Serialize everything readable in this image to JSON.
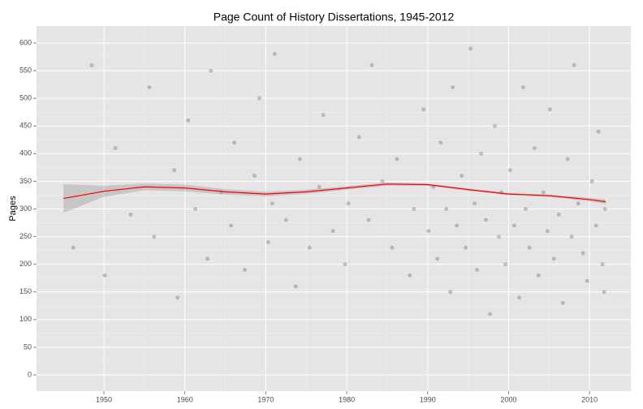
{
  "chart_data": {
    "type": "scatter",
    "title": "Page Count of History Dissertations, 1945-2012",
    "y_label": "Pages",
    "background": "#e5e5e5",
    "grid": true,
    "point_color": "#000000",
    "xlim": [
      1941.67,
      2015.1
    ],
    "ylim": [
      -29.3,
      630.8
    ],
    "xticks": [
      1950,
      1960,
      1970,
      1980,
      1990,
      2000,
      2010
    ],
    "yticks": [
      0,
      50,
      100,
      150,
      200,
      250,
      300,
      350,
      400,
      450,
      500,
      550,
      600
    ],
    "x": [
      1946.2,
      1948.5,
      1950.1,
      1951.4,
      1953.3,
      1955.6,
      1956.2,
      1958.7,
      1959.1,
      1960.4,
      1961.3,
      1962.8,
      1963.2,
      1964.5,
      1965.7,
      1966.1,
      1967.4,
      1968.6,
      1969.2,
      1970.3,
      1970.8,
      1971.1,
      1972.5,
      1973.7,
      1974.2,
      1975.4,
      1976.6,
      1977.1,
      1978.3,
      1979.8,
      1980.2,
      1981.5,
      1982.7,
      1983.1,
      1984.4,
      1985.6,
      1986.2,
      1987.8,
      1988.3,
      1989.5,
      1990.1,
      1990.7,
      1991.2,
      1991.6,
      1992.3,
      1992.8,
      1993.1,
      1993.6,
      1994.2,
      1994.7,
      1995.3,
      1995.8,
      1996.1,
      1996.6,
      1997.2,
      1997.7,
      1998.3,
      1998.8,
      1999.1,
      1999.6,
      2000.2,
      2000.7,
      2001.3,
      2001.8,
      2002.1,
      2002.6,
      2003.2,
      2003.7,
      2004.3,
      2004.8,
      2005.1,
      2005.6,
      2006.2,
      2006.7,
      2007.3,
      2007.8,
      2008.1,
      2008.6,
      2009.2,
      2009.7,
      2010.3,
      2010.8,
      2011.1,
      2011.6,
      2011.9,
      2011.8
    ],
    "values": [
      230,
      560,
      180,
      410,
      290,
      520,
      250,
      370,
      140,
      460,
      300,
      210,
      550,
      330,
      270,
      420,
      190,
      360,
      500,
      240,
      310,
      580,
      280,
      160,
      390,
      230,
      340,
      470,
      260,
      200,
      310,
      430,
      280,
      560,
      350,
      230,
      390,
      180,
      300,
      480,
      260,
      340,
      210,
      420,
      300,
      150,
      520,
      270,
      360,
      230,
      590,
      310,
      190,
      400,
      280,
      110,
      450,
      250,
      330,
      200,
      370,
      270,
      140,
      520,
      300,
      230,
      410,
      180,
      330,
      260,
      480,
      210,
      290,
      130,
      390,
      250,
      560,
      310,
      220,
      170,
      350,
      270,
      440,
      200,
      300,
      150
    ],
    "smooth": {
      "color": "#ff0000",
      "band_color": "#999999",
      "x": [
        1945,
        1950,
        1955,
        1960,
        1965,
        1970,
        1975,
        1980,
        1985,
        1990,
        1995,
        2000,
        2005,
        2010,
        2012
      ],
      "values": [
        319,
        332,
        340,
        338,
        331,
        327,
        331,
        338,
        345,
        344,
        335,
        327,
        324,
        317,
        313
      ],
      "lower": [
        293,
        322,
        334,
        332,
        326,
        323,
        327,
        335,
        342,
        342,
        333,
        325,
        322,
        314,
        309
      ],
      "upper": [
        345,
        342,
        346,
        344,
        336,
        331,
        335,
        341,
        348,
        346,
        337,
        329,
        326,
        320,
        317
      ]
    }
  }
}
